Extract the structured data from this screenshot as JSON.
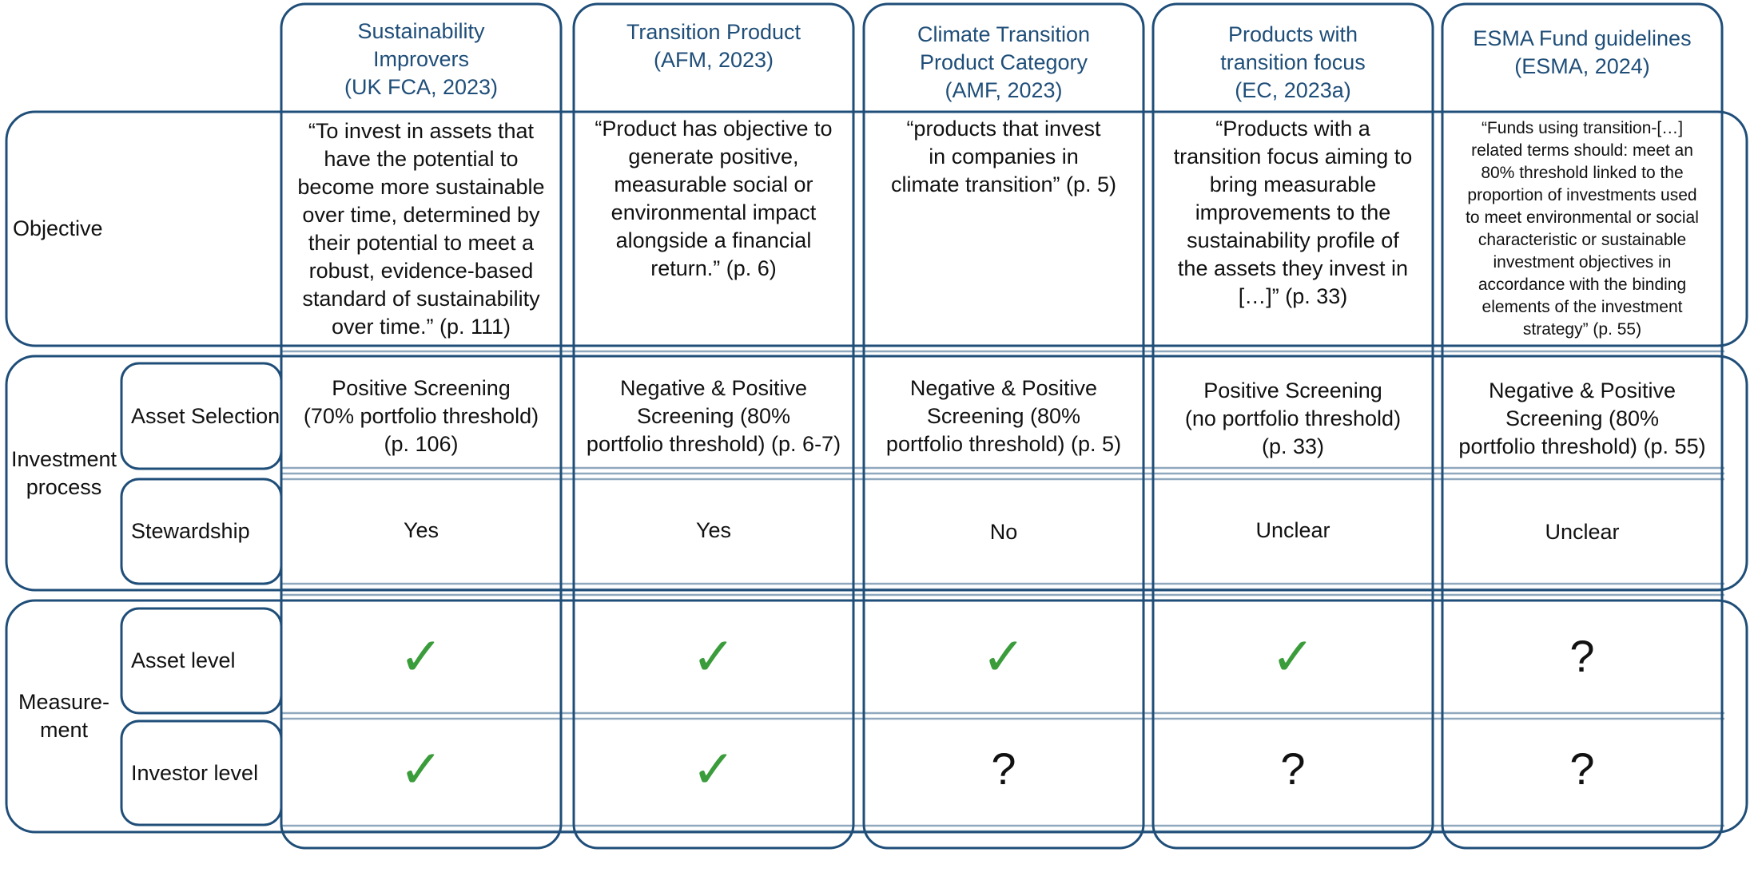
{
  "columns": [
    {
      "title": "Sustainability\nImprovers\n(UK FCA, 2023)"
    },
    {
      "title": "Transition Product\n(AFM, 2023)"
    },
    {
      "title": "Climate Transition\nProduct Category\n(AMF, 2023)"
    },
    {
      "title": "Products with\ntransition focus\n(EC, 2023a)"
    },
    {
      "title": "ESMA Fund guidelines\n(ESMA, 2024)"
    }
  ],
  "rows": {
    "objective": "Objective",
    "investment_process": "Investment\nprocess",
    "asset_selection": "Asset Selection",
    "stewardship": "Stewardship",
    "measurement": "Measure-\nment",
    "asset_level": "Asset level",
    "investor_level": "Investor level"
  },
  "objective": [
    "“To invest in assets that\nhave the potential to\nbecome more sustainable\nover time, determined by\ntheir potential to meet a\nrobust, evidence-based\nstandard of sustainability\nover time.” (p. 111)",
    "“Product has objective to\ngenerate positive,\nmeasurable social or\nenvironmental impact\nalongside a financial\nreturn.” (p. 6)",
    "“products that invest\nin companies in\nclimate transition” (p. 5)",
    "“Products with a\ntransition focus aiming to\nbring measurable\nimprovements to the\nsustainability profile of\nthe assets they invest in\n[…]” (p. 33)",
    "“Funds using transition-[…]\nrelated terms should: meet an\n80% threshold linked to the\nproportion of investments used\nto meet environmental or social\ncharacteristic or sustainable\ninvestment objectives in\naccordance with the binding\nelements of the investment\nstrategy” (p. 55)"
  ],
  "asset_selection": [
    "Positive Screening\n(70% portfolio threshold)\n(p. 106)",
    "Negative & Positive\nScreening (80%\nportfolio threshold) (p. 6-7)",
    "Negative & Positive\nScreening (80%\nportfolio threshold) (p. 5)",
    "Positive Screening\n(no portfolio threshold)\n(p. 33)",
    "Negative & Positive\nScreening (80%\nportfolio threshold) (p. 55)"
  ],
  "stewardship": [
    "Yes",
    "Yes",
    "No",
    "Unclear",
    "Unclear"
  ],
  "asset_level": [
    "✓",
    "✓",
    "✓",
    "✓",
    "?"
  ],
  "investor_level": [
    "✓",
    "✓",
    "?",
    "?",
    "?"
  ],
  "colors": {
    "frame": "#1f4e79",
    "grid": "#8fa8bd",
    "header_text": "#1f4e79",
    "check": "#3a9c3a"
  }
}
